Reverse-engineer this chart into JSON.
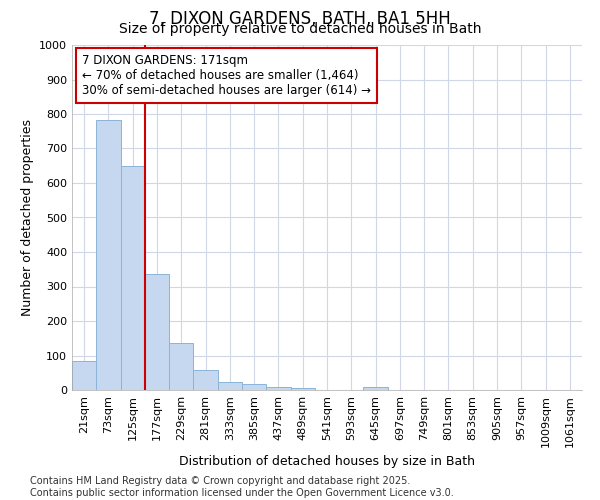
{
  "title_line1": "7, DIXON GARDENS, BATH, BA1 5HH",
  "title_line2": "Size of property relative to detached houses in Bath",
  "xlabel": "Distribution of detached houses by size in Bath",
  "ylabel": "Number of detached properties",
  "categories": [
    "21sqm",
    "73sqm",
    "125sqm",
    "177sqm",
    "229sqm",
    "281sqm",
    "333sqm",
    "385sqm",
    "437sqm",
    "489sqm",
    "541sqm",
    "593sqm",
    "645sqm",
    "697sqm",
    "749sqm",
    "801sqm",
    "853sqm",
    "905sqm",
    "957sqm",
    "1009sqm",
    "1061sqm"
  ],
  "values": [
    83,
    783,
    648,
    335,
    135,
    58,
    22,
    17,
    9,
    6,
    0,
    0,
    8,
    0,
    0,
    0,
    0,
    0,
    0,
    0,
    0
  ],
  "bar_color": "#c5d8f0",
  "bar_edge_color": "#8ab4d8",
  "grid_color": "#d0d8e8",
  "annotation_box_color": "#cc0000",
  "vline_color": "#cc0000",
  "vline_x_index": 2.5,
  "annotation_text_line1": "7 DIXON GARDENS: 171sqm",
  "annotation_text_line2": "← 70% of detached houses are smaller (1,464)",
  "annotation_text_line3": "30% of semi-detached houses are larger (614) →",
  "ylim": [
    0,
    1000
  ],
  "yticks": [
    0,
    100,
    200,
    300,
    400,
    500,
    600,
    700,
    800,
    900,
    1000
  ],
  "footer_line1": "Contains HM Land Registry data © Crown copyright and database right 2025.",
  "footer_line2": "Contains public sector information licensed under the Open Government Licence v3.0.",
  "bg_color": "#ffffff",
  "title_fontsize": 12,
  "subtitle_fontsize": 10,
  "tick_fontsize": 8,
  "ylabel_fontsize": 9,
  "xlabel_fontsize": 9,
  "annotation_fontsize": 8.5,
  "footer_fontsize": 7
}
